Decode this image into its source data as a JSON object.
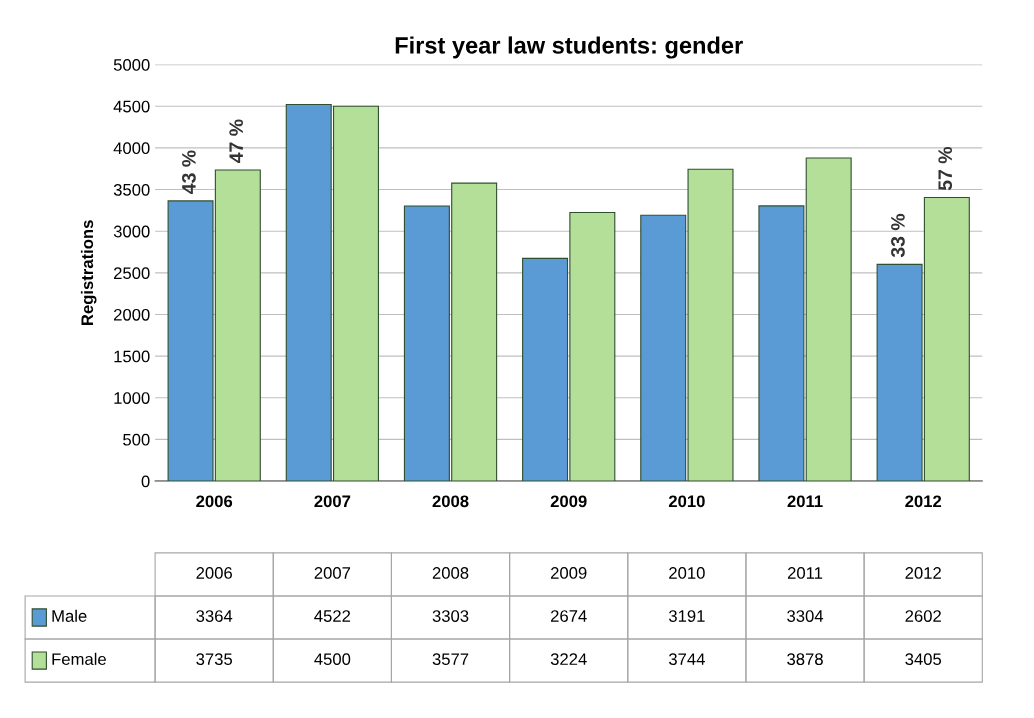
{
  "chart_data": {
    "type": "bar",
    "title": "First year law students: gender",
    "ylabel": "Registrations",
    "categories": [
      "2006",
      "2007",
      "2008",
      "2009",
      "2010",
      "2011",
      "2012"
    ],
    "series": [
      {
        "name": "Male",
        "color": "#5b9bd5",
        "values": [
          3364,
          4522,
          3303,
          2674,
          3191,
          3304,
          2602
        ]
      },
      {
        "name": "Female",
        "color": "#b4df98",
        "values": [
          3735,
          4500,
          3577,
          3224,
          3744,
          3878,
          3405
        ]
      }
    ],
    "ylim": [
      0,
      5000
    ],
    "yticks": [
      0,
      500,
      1000,
      1500,
      2000,
      2500,
      3000,
      3500,
      4000,
      4500,
      5000
    ],
    "grid": "y",
    "legend": "bottom",
    "data_labels": true,
    "annotations": [
      {
        "text": "43 %",
        "x": "2006",
        "y": 3364
      },
      {
        "text": "47 %",
        "x": "2006",
        "y": 3735
      },
      {
        "text": "33 %",
        "x": "2012",
        "y": 2602
      },
      {
        "text": "57 %",
        "x": "2012",
        "y": 3405
      }
    ]
  }
}
